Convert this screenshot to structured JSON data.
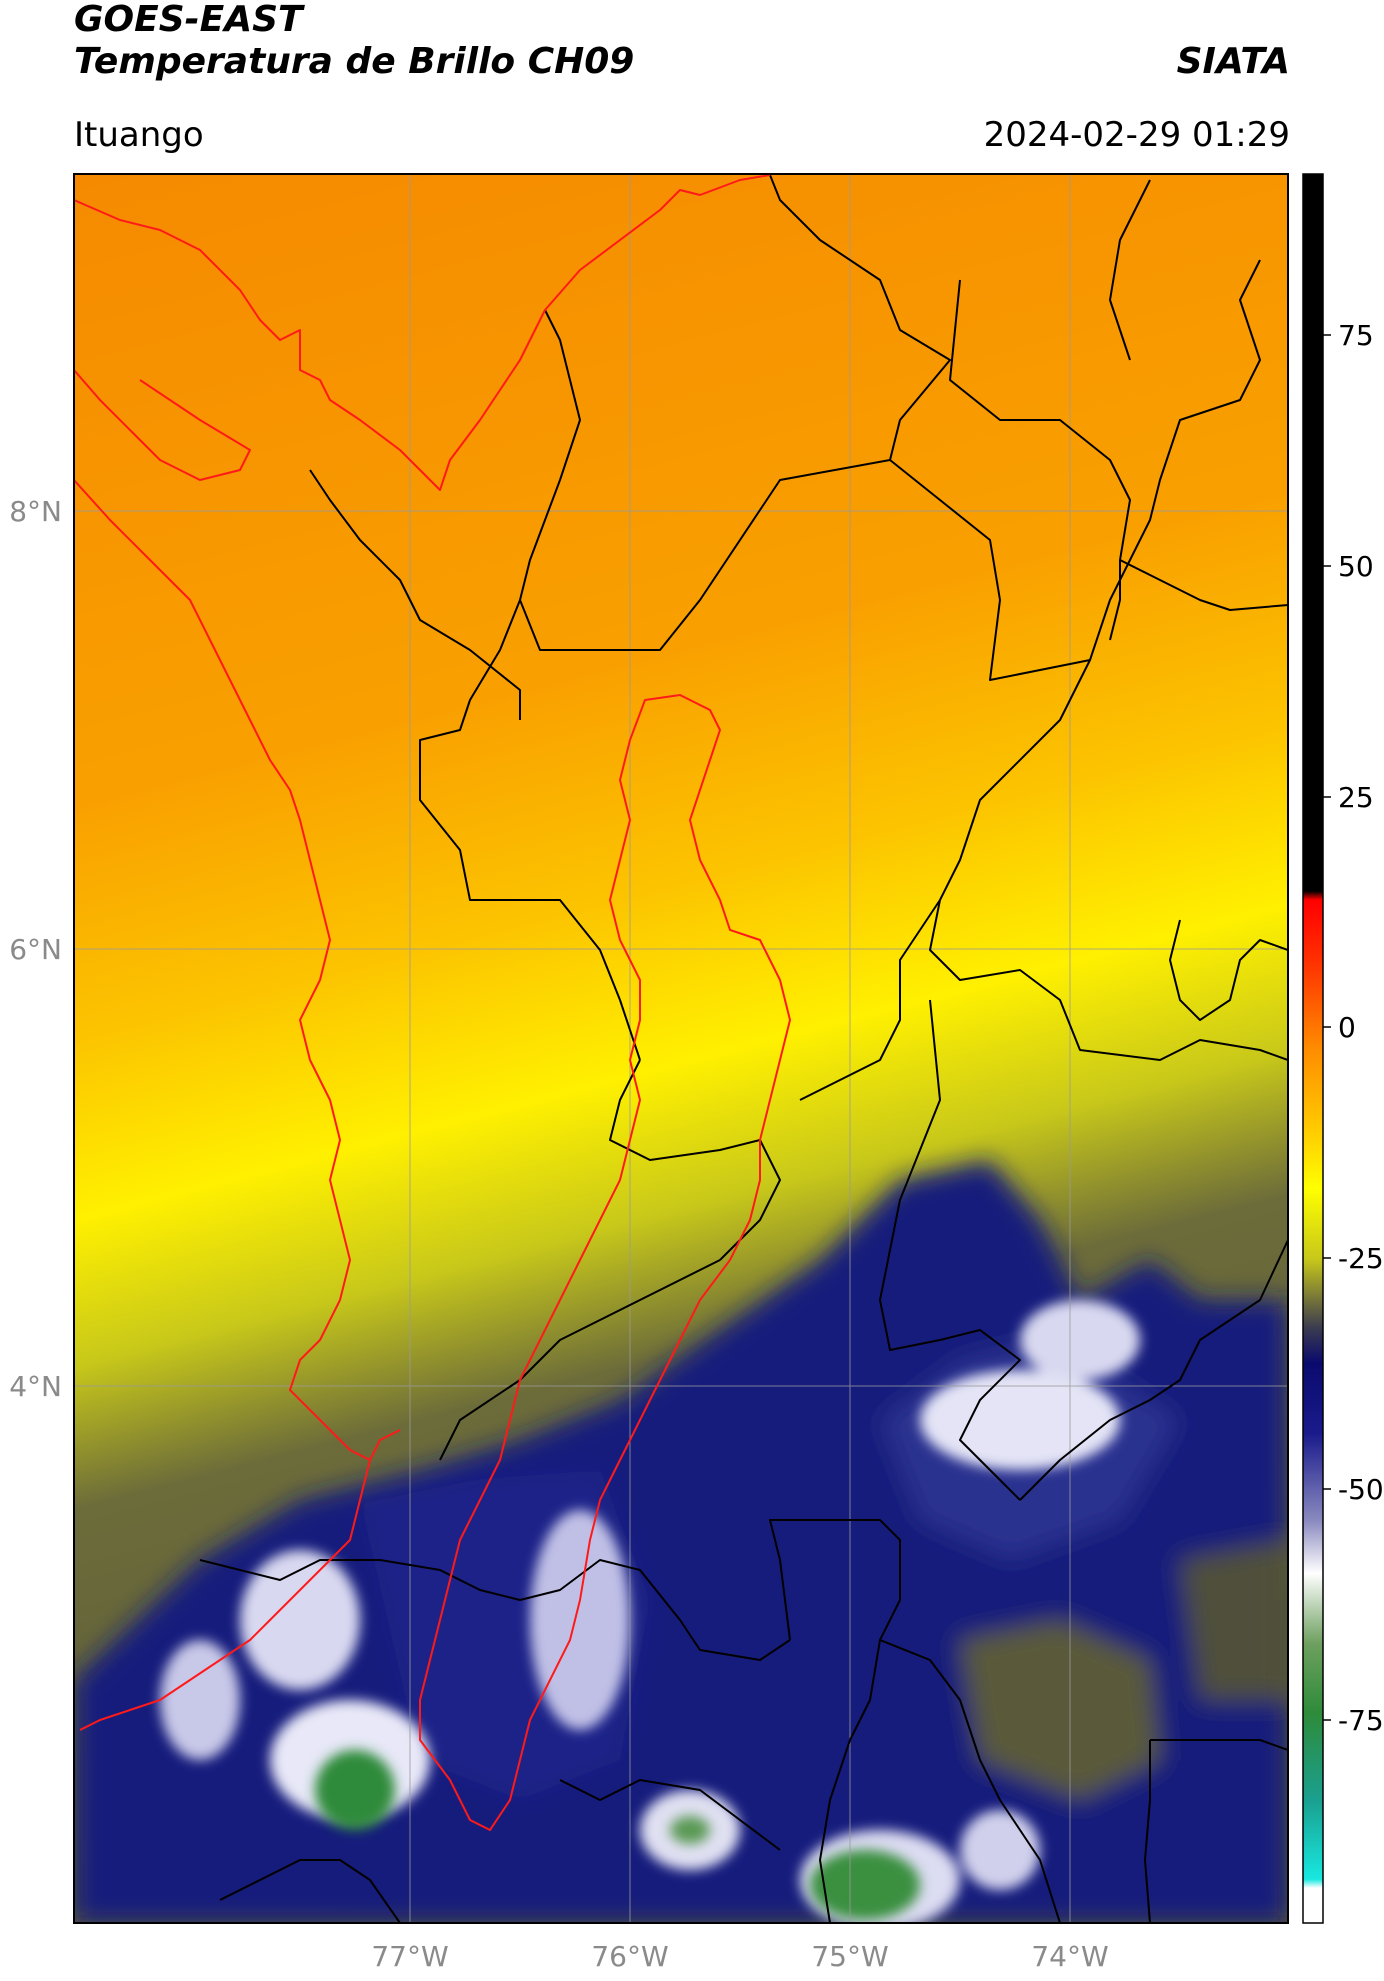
{
  "header": {
    "title_line1": "GOES-EAST",
    "title_line2": "Temperatura de Brillo CH09",
    "organization": "SIATA",
    "location": "Ituango",
    "datetime": "2024-02-29 01:29"
  },
  "axes": {
    "lat_labels": [
      "8°N",
      "6°N",
      "4°N"
    ],
    "lon_labels": [
      "77°W",
      "76°W",
      "75°W",
      "74°W"
    ]
  },
  "colorbar": {
    "tick_labels": [
      "75",
      "50",
      "25",
      "0",
      "-25",
      "-50",
      "-75"
    ],
    "colors": {
      "black": "#000000",
      "red": "#ff0000",
      "orange": "#ff8c00",
      "yellow": "#ffff00",
      "olive": "#5a5a3a",
      "navy": "#101a7a",
      "white": "#ffffff",
      "green": "#2e8b3a",
      "cyan": "#18d8d0"
    }
  },
  "map_lines": {
    "political_boundaries": "#000000",
    "basin_outline": "#ff0000",
    "graticule": "#9a9a9a"
  }
}
